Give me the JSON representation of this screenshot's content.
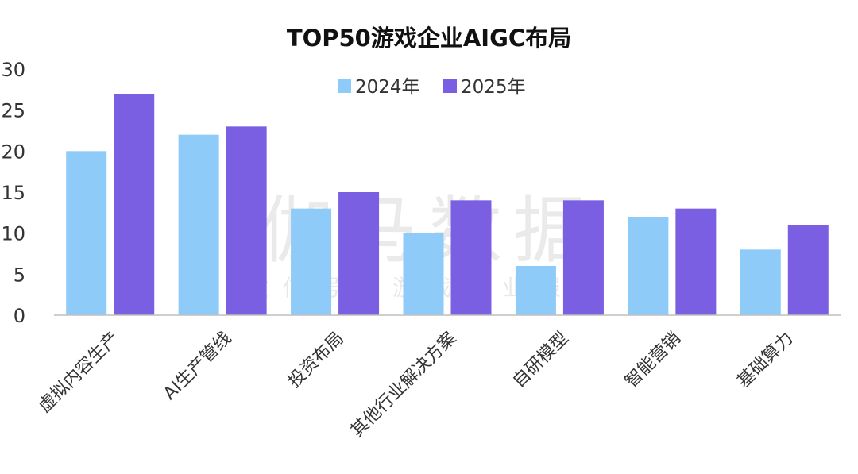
{
  "watermark": {
    "main": "伽马数据",
    "sub": "微信号：游戏产业报告"
  },
  "chart_data": {
    "type": "bar",
    "title": "TOP50游戏企业AIGC布局",
    "xlabel": "",
    "ylabel": "",
    "ylim": [
      0,
      30
    ],
    "yticks": [
      0,
      5,
      10,
      15,
      20,
      25,
      30
    ],
    "grid": false,
    "legend_position": "top-center",
    "categories": [
      "虚拟内容生产",
      "AI生产管线",
      "投资布局",
      "其他行业解决方案",
      "自研模型",
      "智能营销",
      "基础算力"
    ],
    "series": [
      {
        "name": "2024年",
        "color": "#8ecbf8",
        "values": [
          20,
          22,
          13,
          10,
          6,
          12,
          8
        ]
      },
      {
        "name": "2025年",
        "color": "#7b5fe3",
        "values": [
          27,
          23,
          15,
          14,
          14,
          13,
          11
        ]
      }
    ]
  }
}
